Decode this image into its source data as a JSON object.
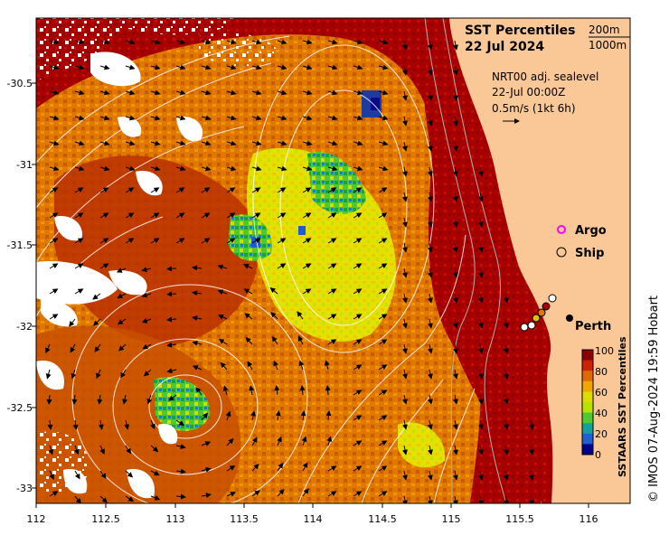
{
  "title": {
    "line1": "SST Percentiles",
    "line2": "22 Jul 2024",
    "contour_label_1": "200m",
    "contour_label_2": "1000m"
  },
  "current_info": {
    "line1": "NRT00 adj. sealevel",
    "line2": "22-Jul 00:00Z",
    "line3": "0.5m/s (1kt 6h)"
  },
  "legend": {
    "argo": "Argo",
    "ship": "Ship"
  },
  "place": {
    "name": "Perth"
  },
  "colorbar": {
    "title": "SSTAARS SST Percentiles",
    "ticks": [
      "100",
      "80",
      "60",
      "40",
      "20",
      "0"
    ],
    "colors": [
      "#8b0000",
      "#cc2200",
      "#e06a00",
      "#f0a500",
      "#dcdc00",
      "#b8e000",
      "#50c832",
      "#14a0a0",
      "#2060d0",
      "#00008b"
    ]
  },
  "credit": "© IMOS 07-Aug-2024 19:59 Hobart",
  "axes": {
    "x_ticks": [
      "112",
      "112.5",
      "113",
      "113.5",
      "114",
      "114.5",
      "115",
      "115.5",
      "116"
    ],
    "y_ticks": [
      "-30.5",
      "-31",
      "-31.5",
      "-32",
      "-32.5",
      "-33"
    ]
  },
  "colors": {
    "land": "#fac896",
    "ocean_hot": "#a80000",
    "ocean_warm": "#e06a00",
    "ocean_mid": "#f0a500",
    "ocean_cool": "#e8e000",
    "ocean_green": "#50c832",
    "ocean_blue": "#1e5ad2",
    "argo_marker": "#ff00ff",
    "contour": "#ffffff"
  }
}
